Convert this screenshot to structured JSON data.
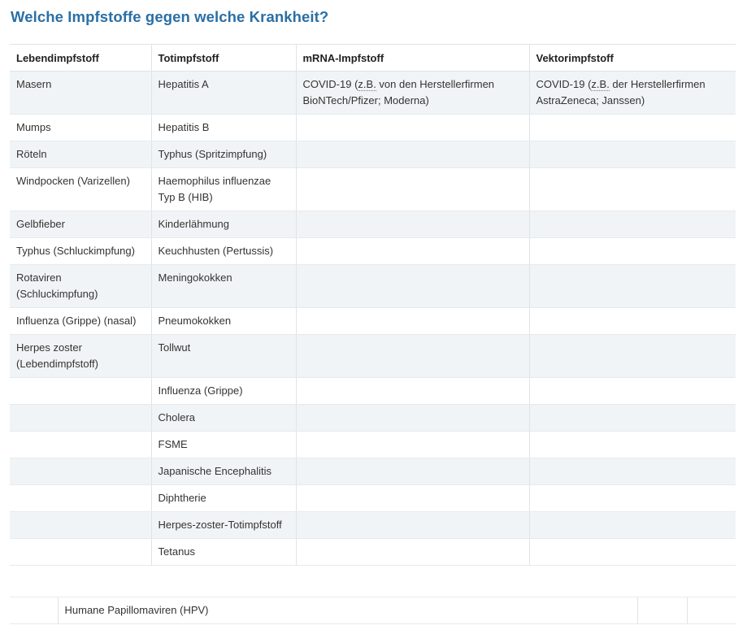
{
  "page": {
    "title": "Welche Impfstoffe gegen welche Krankheit?"
  },
  "table": {
    "headers": [
      "Lebendimpfstoff",
      "Totimpfstoff",
      "mRNA-Impfstoff",
      "Vektorimpfstoff"
    ],
    "first_row": {
      "live": "Masern",
      "inactivated": "Hepatitis A",
      "mrna": {
        "before": "COVID-19 (",
        "abbr": "z.B.",
        "after": " von den Herstellerfirmen BioNTech/Pfizer; Moderna)"
      },
      "vector": {
        "before": "COVID-19 (",
        "abbr": "z.B.",
        "after": " der Herstellerfirmen AstraZeneca; Janssen)"
      }
    },
    "rows": [
      [
        "Mumps",
        "Hepatitis B",
        "",
        ""
      ],
      [
        "Röteln",
        "Typhus (Spritzimpfung)",
        "",
        ""
      ],
      [
        "Windpocken (Varizellen)",
        "Haemophilus influenzae Typ B (HIB)",
        "",
        ""
      ],
      [
        "Gelbfieber",
        "Kinderlähmung",
        "",
        ""
      ],
      [
        "Typhus (Schluckimpfung)",
        "Keuchhusten (Pertussis)",
        "",
        ""
      ],
      [
        "Rotaviren (Schluckimpfung)",
        "Meningokokken",
        "",
        ""
      ],
      [
        "Influenza (Grippe) (nasal)",
        "Pneumokokken",
        "",
        ""
      ],
      [
        "Herpes zoster (Lebendimpfstoff)",
        "Tollwut",
        "",
        ""
      ],
      [
        "",
        "Influenza (Grippe)",
        "",
        ""
      ],
      [
        "",
        "Cholera",
        "",
        ""
      ],
      [
        "",
        "FSME",
        "",
        ""
      ],
      [
        "",
        "Japanische Encephalitis",
        "",
        ""
      ],
      [
        "",
        "Diphtherie",
        "",
        ""
      ],
      [
        "",
        "Herpes-zoster-Totimpfstoff",
        "",
        ""
      ],
      [
        "",
        "Tetanus",
        "",
        ""
      ]
    ]
  },
  "hpv_row": {
    "cells": [
      "",
      "Humane Papillomaviren (HPV)",
      "",
      ""
    ]
  }
}
